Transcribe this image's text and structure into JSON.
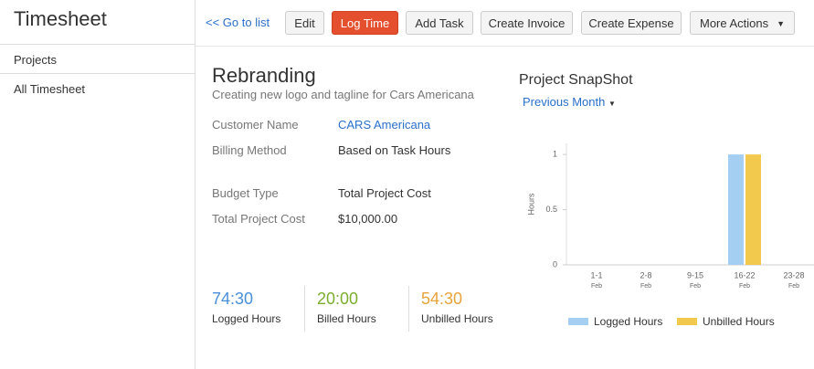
{
  "sidebar": {
    "title": "Timesheet",
    "items": [
      "Projects",
      "All Timesheet"
    ]
  },
  "toolbar": {
    "back_link": "<< Go to list",
    "buttons": [
      "Edit",
      "Log Time",
      "Add Task",
      "Create Invoice",
      "Create Expense",
      "More Actions"
    ]
  },
  "project": {
    "name": "Rebranding",
    "description": "Creating new logo and tagline for Cars Americana",
    "fields": [
      {
        "label": "Customer Name",
        "value": "CARS Americana"
      },
      {
        "label": "Billing Method",
        "value": "Based on Task Hours"
      },
      {
        "label": "Budget Type",
        "value": "Total Project Cost"
      },
      {
        "label": "Total Project Cost",
        "value": "$10,000.00"
      }
    ]
  },
  "stats": [
    {
      "value": "74:30",
      "label": "Logged Hours"
    },
    {
      "value": "20:00",
      "label": "Billed Hours"
    },
    {
      "value": "54:30",
      "label": "Unbilled Hours"
    }
  ],
  "snapshot": {
    "title": "Project SnapShot",
    "period": "Previous Month"
  },
  "chart_data": {
    "type": "bar",
    "y_label": "Hours",
    "categories": [
      "1-1",
      "2-8",
      "9-15",
      "16-22",
      "23-28"
    ],
    "category_sublabels": [
      "Feb",
      "Feb",
      "Feb",
      "Feb",
      "Feb"
    ],
    "series": [
      {
        "name": "Logged Hours",
        "color": "#a4cff2",
        "values": [
          0,
          0,
          0,
          1,
          0
        ]
      },
      {
        "name": "Unbilled Hours",
        "color": "#f2c94c",
        "values": [
          0,
          0,
          0,
          1,
          0
        ]
      }
    ],
    "ylim": [
      0,
      1.1
    ],
    "yticks": [
      0,
      0.5,
      1
    ]
  }
}
